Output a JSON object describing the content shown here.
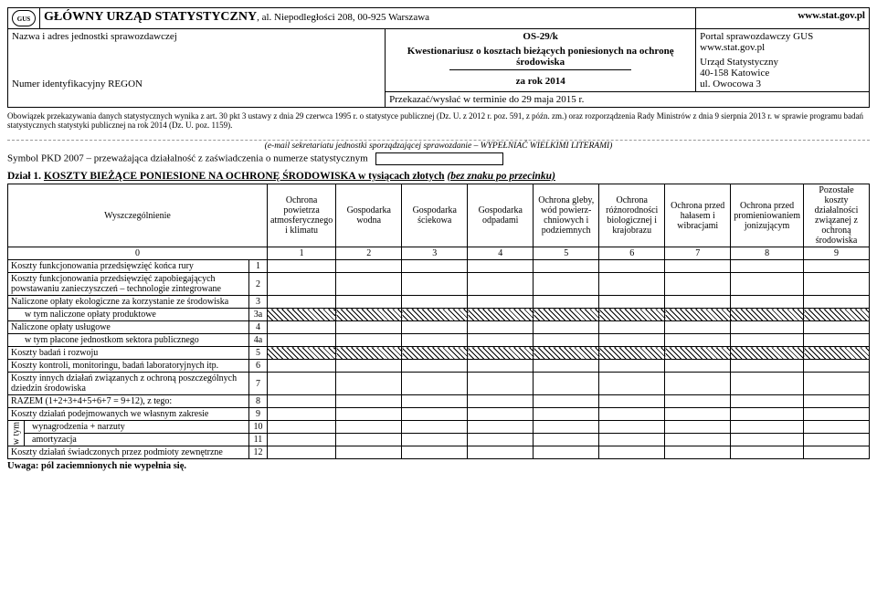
{
  "header": {
    "agency": "GŁÓWNY URZĄD STATYSTYCZNY",
    "address": ", al. Niepodległości 208, 00-925 Warszawa",
    "url": "www.stat.gov.pl",
    "entity_label": "Nazwa i adres jednostki sprawozdawczej",
    "regon_label": "Numer identyfikacyjny REGON",
    "form_code": "OS-29/k",
    "subtitle": "Kwestionariusz o kosztach bieżących poniesionych na ochronę środowiska",
    "year_line": "za rok 2014",
    "portal1": "Portal sprawozdawczy GUS",
    "portal2": "www.stat.gov.pl",
    "office1": "Urząd Statystyczny",
    "office2": "40-158 Katowice",
    "office3": "ul. Owocowa 3",
    "deadline": "Przekazać/wysłać w terminie do 29 maja 2015 r."
  },
  "legal": "Obowiązek przekazywania danych statystycznych wynika z art. 30 pkt 3 ustawy z dnia 29 czerwca 1995 r. o statystyce publicznej (Dz. U. z 2012 r. poz. 591, z późn. zm.) oraz rozporządzenia Rady Ministrów z dnia 9 sierpnia 2013 r. w sprawie programu badań statystycznych statystyki publicznej na rok 2014 (Dz. U. poz. 1159).",
  "email_note": "(e-mail sekretariatu jednostki sporządzającej sprawozdanie – WYPEŁNIAĆ WIELKIMI LITERAMI)",
  "symbol_line": "Symbol PKD 2007 – przeważająca działalność z zaświadczenia o numerze statystycznym",
  "section1": {
    "prefix": "Dział 1.",
    "title_a": "KOSZTY BIEŻĄCE PONIESIONE NA OCHRONĘ ŚRODOWISKA w tysiącach złotych",
    "title_b": "(bez znaku po przecinku)"
  },
  "columns": [
    "Wyszczególnienie",
    "Ochrona powietrza atmosferycznego i klimatu",
    "Gospodarka wodna",
    "Gospodarka ściekowa",
    "Gospodarka odpadami",
    "Ochrona gleby, wód powierz- chniowych i podziemnych",
    "Ochrona różnorodności biologicznej i krajobrazu",
    "Ochrona przed hałasem i wibracjami",
    "Ochrona przed promieniowaniem jonizującym",
    "Pozostałe koszty działalności związanej z ochroną środowiska"
  ],
  "colnums": [
    "0",
    "1",
    "2",
    "3",
    "4",
    "5",
    "6",
    "7",
    "8",
    "9"
  ],
  "rows": [
    {
      "n": "1",
      "label": "Koszty funkcjonowania przedsięwzięć końca rury"
    },
    {
      "n": "2",
      "label": "Koszty funkcjonowania przedsięwzięć zapobiegających powstawaniu zanieczyszczeń – technologie zintegrowane"
    },
    {
      "n": "3",
      "label": "Naliczone opłaty ekologiczne za korzystanie ze środowiska"
    },
    {
      "n": "3a",
      "label": "w tym naliczone opłaty produktowe",
      "indent": true
    },
    {
      "n": "4",
      "label": "Naliczone opłaty usługowe"
    },
    {
      "n": "4a",
      "label": "w tym płacone jednostkom sektora publicznego",
      "indent": true
    },
    {
      "n": "5",
      "label": "Koszty badań i rozwoju"
    },
    {
      "n": "6",
      "label": "Koszty kontroli, monitoringu, badań laboratoryjnych itp."
    },
    {
      "n": "7",
      "label": "Koszty innych działań związanych z ochroną poszczególnych dziedzin środowiska"
    },
    {
      "n": "8",
      "label": "RAZEM (1+2+3+4+5+6+7 = 9+12), z tego:"
    },
    {
      "n": "9",
      "label": "Koszty działań podejmowanych we własnym zakresie"
    },
    {
      "n": "10",
      "label": "wynagrodzenia + narzuty",
      "wtym": true
    },
    {
      "n": "11",
      "label": "amortyzacja",
      "wtym": true
    },
    {
      "n": "12",
      "label": "Koszty działań świadczonych przez podmioty zewnętrzne"
    }
  ],
  "wtym_label": "w tym",
  "hatched_rows": [
    "3a",
    "5"
  ],
  "footnote": "Uwaga: pól zaciemnionych nie wypełnia się."
}
